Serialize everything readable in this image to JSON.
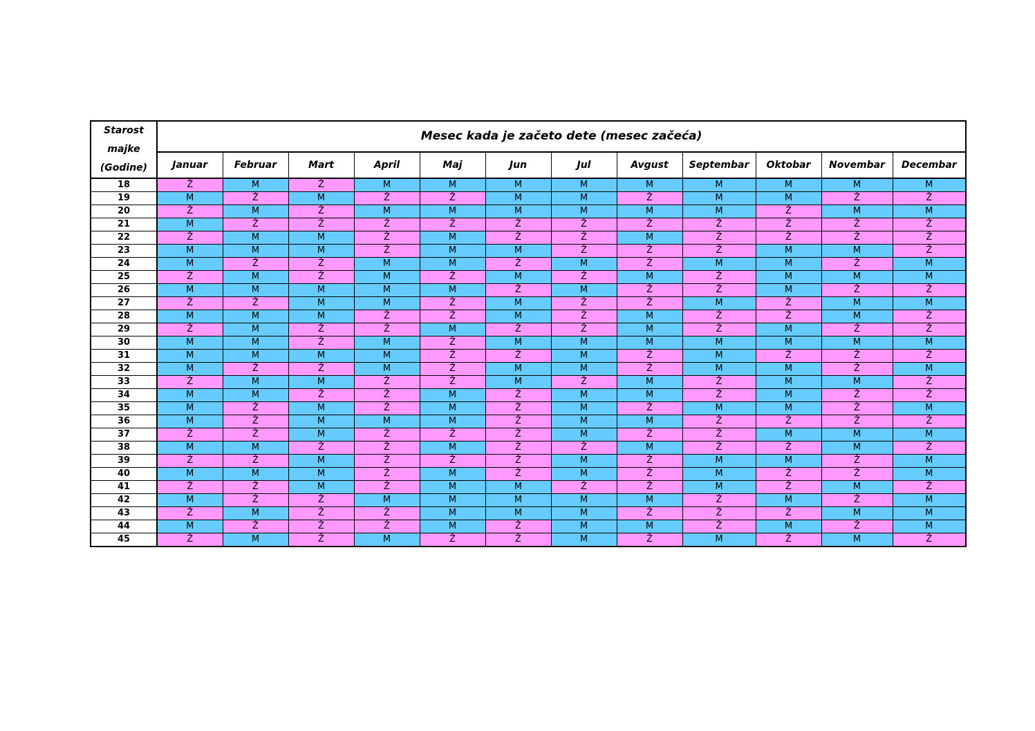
{
  "title": "Mesec kada je začeto dete (mesec začeća)",
  "age_header": [
    "Starost",
    "majke",
    "(Godine)"
  ],
  "months": [
    "Januar",
    "Februar",
    "Mart",
    "April",
    "Maj",
    "Jun",
    "Jul",
    "Avgust",
    "Septembar",
    "Oktobar",
    "Novembar",
    "Decembar"
  ],
  "colors": {
    "m": "#66ccff",
    "z": "#ff99ff"
  },
  "rows": [
    {
      "age": "18",
      "cells": [
        "Ž",
        "M",
        "Ž",
        "M",
        "M",
        "M",
        "M",
        "M",
        "M",
        "M",
        "M",
        "M"
      ]
    },
    {
      "age": "19",
      "cells": [
        "M",
        "Ž",
        "M",
        "Ž",
        "Ž",
        "M",
        "M",
        "Ž",
        "M",
        "M",
        "Ž",
        "Ž"
      ]
    },
    {
      "age": "20",
      "cells": [
        "Ž",
        "M",
        "Ž",
        "M",
        "M",
        "M",
        "M",
        "M",
        "M",
        "Ž",
        "M",
        "M"
      ]
    },
    {
      "age": "21",
      "cells": [
        "M",
        "Ž",
        "Ž",
        "Ž",
        "Ž",
        "Ž",
        "Ž",
        "Ž",
        "Ž",
        "Ž",
        "Ž",
        "Ž"
      ]
    },
    {
      "age": "22",
      "cells": [
        "Ž",
        "M",
        "M",
        "Ž",
        "M",
        "Ž",
        "Ž",
        "M",
        "Ž",
        "Ž",
        "Ž",
        "Ž"
      ]
    },
    {
      "age": "23",
      "cells": [
        "M",
        "M",
        "M",
        "Ž",
        "M",
        "M",
        "Ž",
        "Ž",
        "Ž",
        "M",
        "M",
        "Ž"
      ]
    },
    {
      "age": "24",
      "cells": [
        "M",
        "Ž",
        "Ž",
        "M",
        "M",
        "Ž",
        "M",
        "Ž",
        "M",
        "M",
        "Ž",
        "M"
      ]
    },
    {
      "age": "25",
      "cells": [
        "Ž",
        "M",
        "Ž",
        "M",
        "Ž",
        "M",
        "Ž",
        "M",
        "Ž",
        "M",
        "M",
        "M"
      ]
    },
    {
      "age": "26",
      "cells": [
        "M",
        "M",
        "M",
        "M",
        "M",
        "Ž",
        "M",
        "Ž",
        "Ž",
        "M",
        "Ž",
        "Ž"
      ]
    },
    {
      "age": "27",
      "cells": [
        "Ž",
        "Ž",
        "M",
        "M",
        "Ž",
        "M",
        "Ž",
        "Ž",
        "M",
        "Ž",
        "M",
        "M"
      ]
    },
    {
      "age": "28",
      "cells": [
        "M",
        "M",
        "M",
        "Ž",
        "Ž",
        "M",
        "Ž",
        "M",
        "Ž",
        "Ž",
        "M",
        "Ž"
      ]
    },
    {
      "age": "29",
      "cells": [
        "Ž",
        "M",
        "Ž",
        "Ž",
        "M",
        "Ž",
        "Ž",
        "M",
        "Ž",
        "M",
        "Ž",
        "Ž"
      ]
    },
    {
      "age": "30",
      "cells": [
        "M",
        "M",
        "Ž",
        "M",
        "Ž",
        "M",
        "M",
        "M",
        "M",
        "M",
        "M",
        "M"
      ]
    },
    {
      "age": "31",
      "cells": [
        "M",
        "M",
        "M",
        "M",
        "Ž",
        "Ž",
        "M",
        "Ž",
        "M",
        "Ž",
        "Ž",
        "Ž"
      ]
    },
    {
      "age": "32",
      "cells": [
        "M",
        "Ž",
        "Ž",
        "M",
        "Ž",
        "M",
        "M",
        "Ž",
        "M",
        "M",
        "Ž",
        "M"
      ]
    },
    {
      "age": "33",
      "cells": [
        "Ž",
        "M",
        "M",
        "Ž",
        "Ž",
        "M",
        "Ž",
        "M",
        "Ž",
        "M",
        "M",
        "Ž"
      ]
    },
    {
      "age": "34",
      "cells": [
        "M",
        "M",
        "Ž",
        "Ž",
        "M",
        "Ž",
        "M",
        "M",
        "Ž",
        "M",
        "Ž",
        "Ž"
      ]
    },
    {
      "age": "35",
      "cells": [
        "M",
        "Ž",
        "M",
        "Ž",
        "M",
        "Ž",
        "M",
        "Ž",
        "M",
        "M",
        "Ž",
        "M"
      ]
    },
    {
      "age": "36",
      "cells": [
        "M",
        "Ž",
        "M",
        "M",
        "M",
        "Ž",
        "M",
        "M",
        "Ž",
        "Ž",
        "Ž",
        "Ž"
      ]
    },
    {
      "age": "37",
      "cells": [
        "Ž",
        "Ž",
        "M",
        "Ž",
        "Ž",
        "Ž",
        "M",
        "Ž",
        "Ž",
        "M",
        "M",
        "M"
      ]
    },
    {
      "age": "38",
      "cells": [
        "M",
        "M",
        "Ž",
        "Ž",
        "M",
        "Ž",
        "Ž",
        "M",
        "Ž",
        "Ž",
        "M",
        "Ž"
      ]
    },
    {
      "age": "39",
      "cells": [
        "Ž",
        "Ž",
        "M",
        "Ž",
        "Ž",
        "Ž",
        "M",
        "Ž",
        "M",
        "M",
        "Ž",
        "M"
      ]
    },
    {
      "age": "40",
      "cells": [
        "M",
        "M",
        "M",
        "Ž",
        "M",
        "Ž",
        "M",
        "Ž",
        "M",
        "Ž",
        "Ž",
        "M"
      ]
    },
    {
      "age": "41",
      "cells": [
        "Ž",
        "Ž",
        "M",
        "Ž",
        "M",
        "M",
        "Ž",
        "Ž",
        "M",
        "Ž",
        "M",
        "Ž"
      ]
    },
    {
      "age": "42",
      "cells": [
        "M",
        "Ž",
        "Ž",
        "M",
        "M",
        "M",
        "M",
        "M",
        "Ž",
        "M",
        "Ž",
        "M"
      ]
    },
    {
      "age": "43",
      "cells": [
        "Ž",
        "M",
        "Ž",
        "Ž",
        "M",
        "M",
        "M",
        "Ž",
        "Ž",
        "Ž",
        "M",
        "M"
      ]
    },
    {
      "age": "44",
      "cells": [
        "M",
        "Ž",
        "Ž",
        "Ž",
        "M",
        "Ž",
        "M",
        "M",
        "Ž",
        "M",
        "Ž",
        "M"
      ]
    },
    {
      "age": "45",
      "cells": [
        "Ž",
        "M",
        "Ž",
        "M",
        "Ž",
        "Ž",
        "M",
        "Ž",
        "M",
        "Ž",
        "M",
        "Ž"
      ]
    }
  ]
}
